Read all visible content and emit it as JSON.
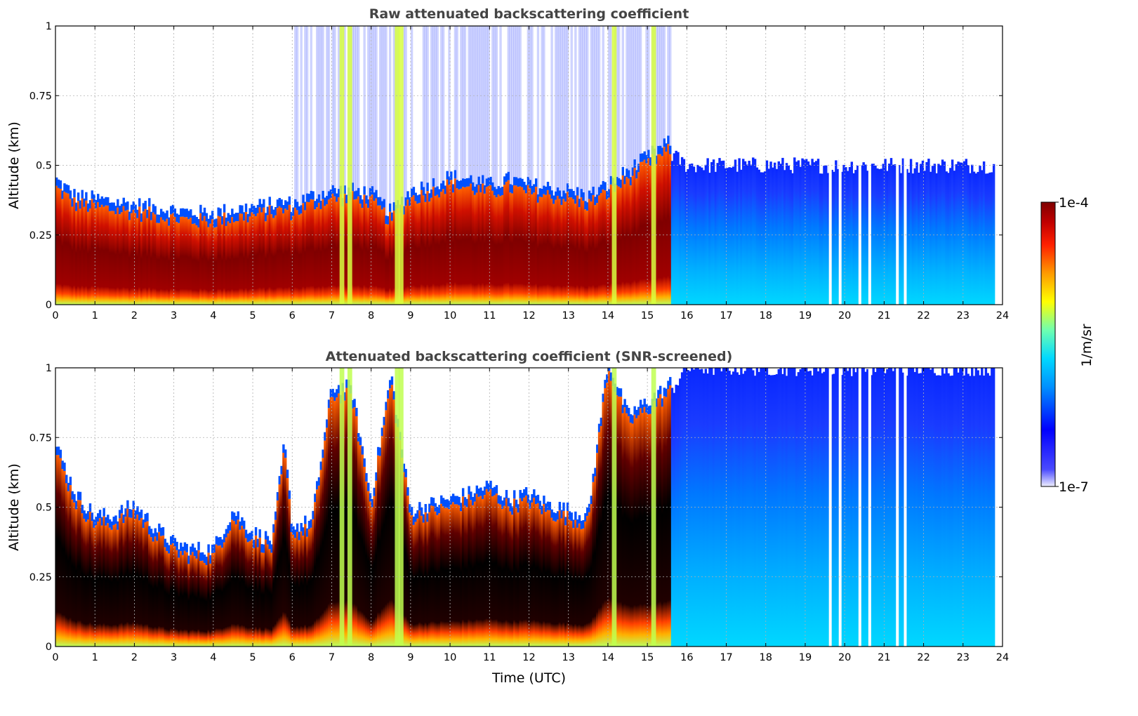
{
  "chart_data": [
    {
      "type": "heatmap",
      "title": "Raw attenuated backscattering coefficient",
      "xlabel": "",
      "ylabel": "Altitude (km)",
      "xlim": [
        0,
        24
      ],
      "ylim": [
        0,
        1
      ],
      "xticks": [
        0,
        1,
        2,
        3,
        4,
        5,
        6,
        7,
        8,
        9,
        10,
        11,
        12,
        13,
        14,
        15,
        16,
        17,
        18,
        19,
        20,
        21,
        22,
        23,
        24
      ],
      "yticks": [
        0,
        0.25,
        0.5,
        0.75,
        1
      ],
      "ytick_labels": [
        "0",
        "0.25",
        "0.5",
        "0.75",
        "1"
      ],
      "grid": true,
      "screened": false,
      "data_end_hour": 23.8,
      "boundary_layer_top_km": [
        [
          0,
          0.42
        ],
        [
          0.5,
          0.36
        ],
        [
          1,
          0.35
        ],
        [
          1.5,
          0.34
        ],
        [
          2,
          0.33
        ],
        [
          2.5,
          0.32
        ],
        [
          3,
          0.31
        ],
        [
          3.5,
          0.3
        ],
        [
          4,
          0.3
        ],
        [
          4.5,
          0.31
        ],
        [
          5,
          0.32
        ],
        [
          5.5,
          0.33
        ],
        [
          5.8,
          0.34
        ],
        [
          6,
          0.33
        ],
        [
          6.5,
          0.36
        ],
        [
          7,
          0.38
        ],
        [
          7.5,
          0.38
        ],
        [
          8,
          0.37
        ],
        [
          8.5,
          0.3
        ],
        [
          9,
          0.38
        ],
        [
          9.5,
          0.4
        ],
        [
          10,
          0.43
        ],
        [
          10.5,
          0.42
        ],
        [
          11,
          0.4
        ],
        [
          11.5,
          0.42
        ],
        [
          12,
          0.4
        ],
        [
          12.5,
          0.39
        ],
        [
          13,
          0.38
        ],
        [
          13.5,
          0.36
        ],
        [
          14,
          0.4
        ],
        [
          14.5,
          0.45
        ],
        [
          15,
          0.5
        ],
        [
          15.5,
          0.55
        ],
        [
          16,
          0.5
        ],
        [
          24,
          0.5
        ]
      ]
    },
    {
      "type": "heatmap",
      "title": "Attenuated backscattering coefficient (SNR-screened)",
      "xlabel": "Time (UTC)",
      "ylabel": "Altitude (km)",
      "xlim": [
        0,
        24
      ],
      "ylim": [
        0,
        1
      ],
      "xticks": [
        0,
        1,
        2,
        3,
        4,
        5,
        6,
        7,
        8,
        9,
        10,
        11,
        12,
        13,
        14,
        15,
        16,
        17,
        18,
        19,
        20,
        21,
        22,
        23,
        24
      ],
      "yticks": [
        0,
        0.25,
        0.5,
        0.75,
        1
      ],
      "ytick_labels": [
        "0",
        "0.25",
        "0.5",
        "0.75",
        "1"
      ],
      "grid": true,
      "screened": true,
      "data_end_hour": 23.8,
      "boundary_layer_top_km": [
        [
          0,
          0.7
        ],
        [
          0.5,
          0.52
        ],
        [
          1,
          0.44
        ],
        [
          1.5,
          0.44
        ],
        [
          2,
          0.48
        ],
        [
          2.5,
          0.4
        ],
        [
          3,
          0.34
        ],
        [
          3.5,
          0.32
        ],
        [
          4,
          0.32
        ],
        [
          4.5,
          0.46
        ],
        [
          5,
          0.38
        ],
        [
          5.5,
          0.35
        ],
        [
          5.8,
          0.7
        ],
        [
          6,
          0.4
        ],
        [
          6.5,
          0.42
        ],
        [
          7,
          0.9
        ],
        [
          7.5,
          0.9
        ],
        [
          8,
          0.5
        ],
        [
          8.5,
          0.95
        ],
        [
          9,
          0.46
        ],
        [
          9.5,
          0.48
        ],
        [
          10,
          0.5
        ],
        [
          10.5,
          0.52
        ],
        [
          11,
          0.55
        ],
        [
          11.5,
          0.5
        ],
        [
          12,
          0.52
        ],
        [
          12.5,
          0.48
        ],
        [
          13,
          0.46
        ],
        [
          13.5,
          0.44
        ],
        [
          14,
          1.0
        ],
        [
          14.5,
          0.8
        ],
        [
          15,
          0.85
        ],
        [
          15.5,
          0.9
        ],
        [
          16,
          1.0
        ],
        [
          24,
          1.0
        ]
      ]
    }
  ],
  "colorbar": {
    "max_label": "1e-4",
    "min_label": "1e-7",
    "unit_label": "1/m/sr",
    "scale": "log",
    "range": [
      1e-07,
      0.0001
    ],
    "colormap": [
      "#eeeeff",
      "#0000ff",
      "#00c8ff",
      "#7fffc0",
      "#ffff00",
      "#ff7f00",
      "#d00000",
      "#7f0000"
    ]
  }
}
